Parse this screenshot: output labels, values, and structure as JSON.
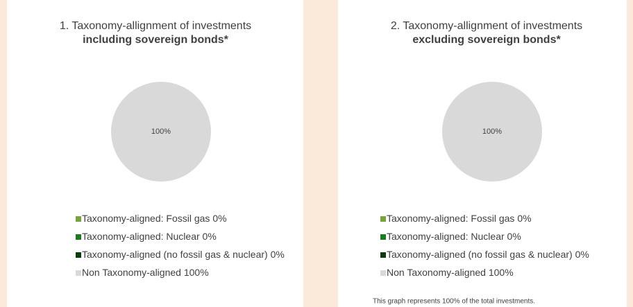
{
  "chart_data": [
    {
      "type": "pie",
      "title": "1. Taxonomy-allignment of investments",
      "subtitle": "including sovereign bonds*",
      "categories": [
        "Taxonomy-aligned: Fossil gas",
        "Taxonomy-aligned: Nuclear",
        "Taxonomy-aligned (no fossil gas & nuclear)",
        "Non Taxonomy-aligned"
      ],
      "values": [
        0,
        0,
        0,
        100
      ],
      "value_labels": [
        "0%",
        "0%",
        "0%",
        "100%"
      ],
      "colors": [
        "#77a33a",
        "#1f7a1f",
        "#0d3b0d",
        "#d9d9d9"
      ]
    },
    {
      "type": "pie",
      "title": "2. Taxonomy-allignment of investments",
      "subtitle": "excluding sovereign bonds*",
      "categories": [
        "Taxonomy-aligned: Fossil gas",
        "Taxonomy-aligned: Nuclear",
        "Taxonomy-aligned (no fossil gas & nuclear)",
        "Non Taxonomy-aligned"
      ],
      "values": [
        0,
        0,
        0,
        100
      ],
      "value_labels": [
        "0%",
        "0%",
        "0%",
        "100%"
      ],
      "colors": [
        "#77a33a",
        "#1f7a1f",
        "#0d3b0d",
        "#d9d9d9"
      ],
      "footnote": "This graph represents 100% of the total investments."
    }
  ]
}
